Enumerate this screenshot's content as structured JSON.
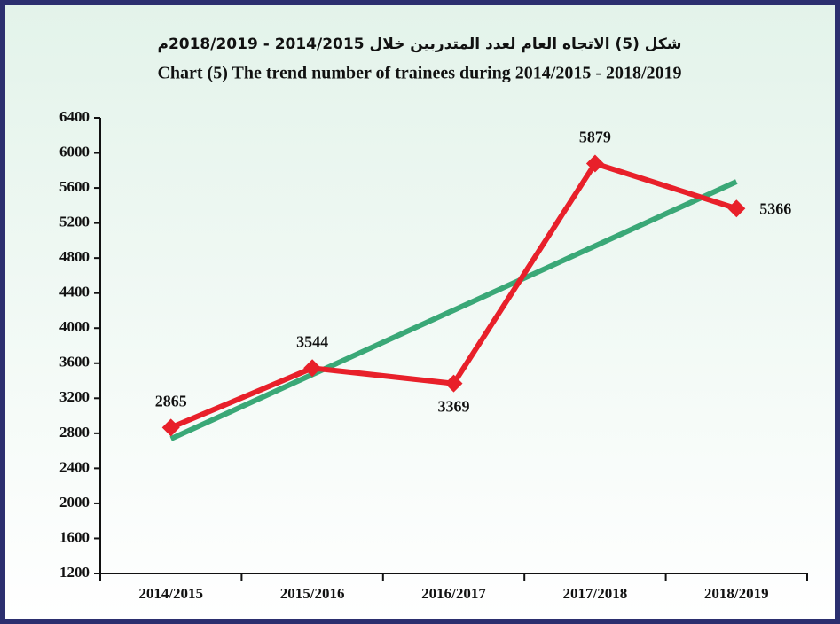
{
  "chart_data": {
    "type": "line",
    "title": "شكل (5) الاتجاه العام لعدد المتدربين خلال 2014/2015 - 2018/2019م",
    "subtitle": "Chart (5) The trend number of trainees during 2014/2015 - 2018/2019",
    "categories": [
      "2014/2015",
      "2015/2016",
      "2016/2017",
      "2017/2018",
      "2018/2019"
    ],
    "series": [
      {
        "color": "#e8202a",
        "values": [
          2865,
          3544,
          3369,
          5879,
          5366
        ]
      },
      {
        "color": "#3aa877",
        "values": [
          2737,
          3471,
          4205,
          4938,
          5672
        ]
      }
    ],
    "ylim": [
      1200,
      6400
    ],
    "yticks": [
      1200,
      1600,
      2000,
      2400,
      2800,
      3200,
      3600,
      4000,
      4400,
      4800,
      5200,
      5600,
      6000,
      6400
    ],
    "grid": false
  }
}
